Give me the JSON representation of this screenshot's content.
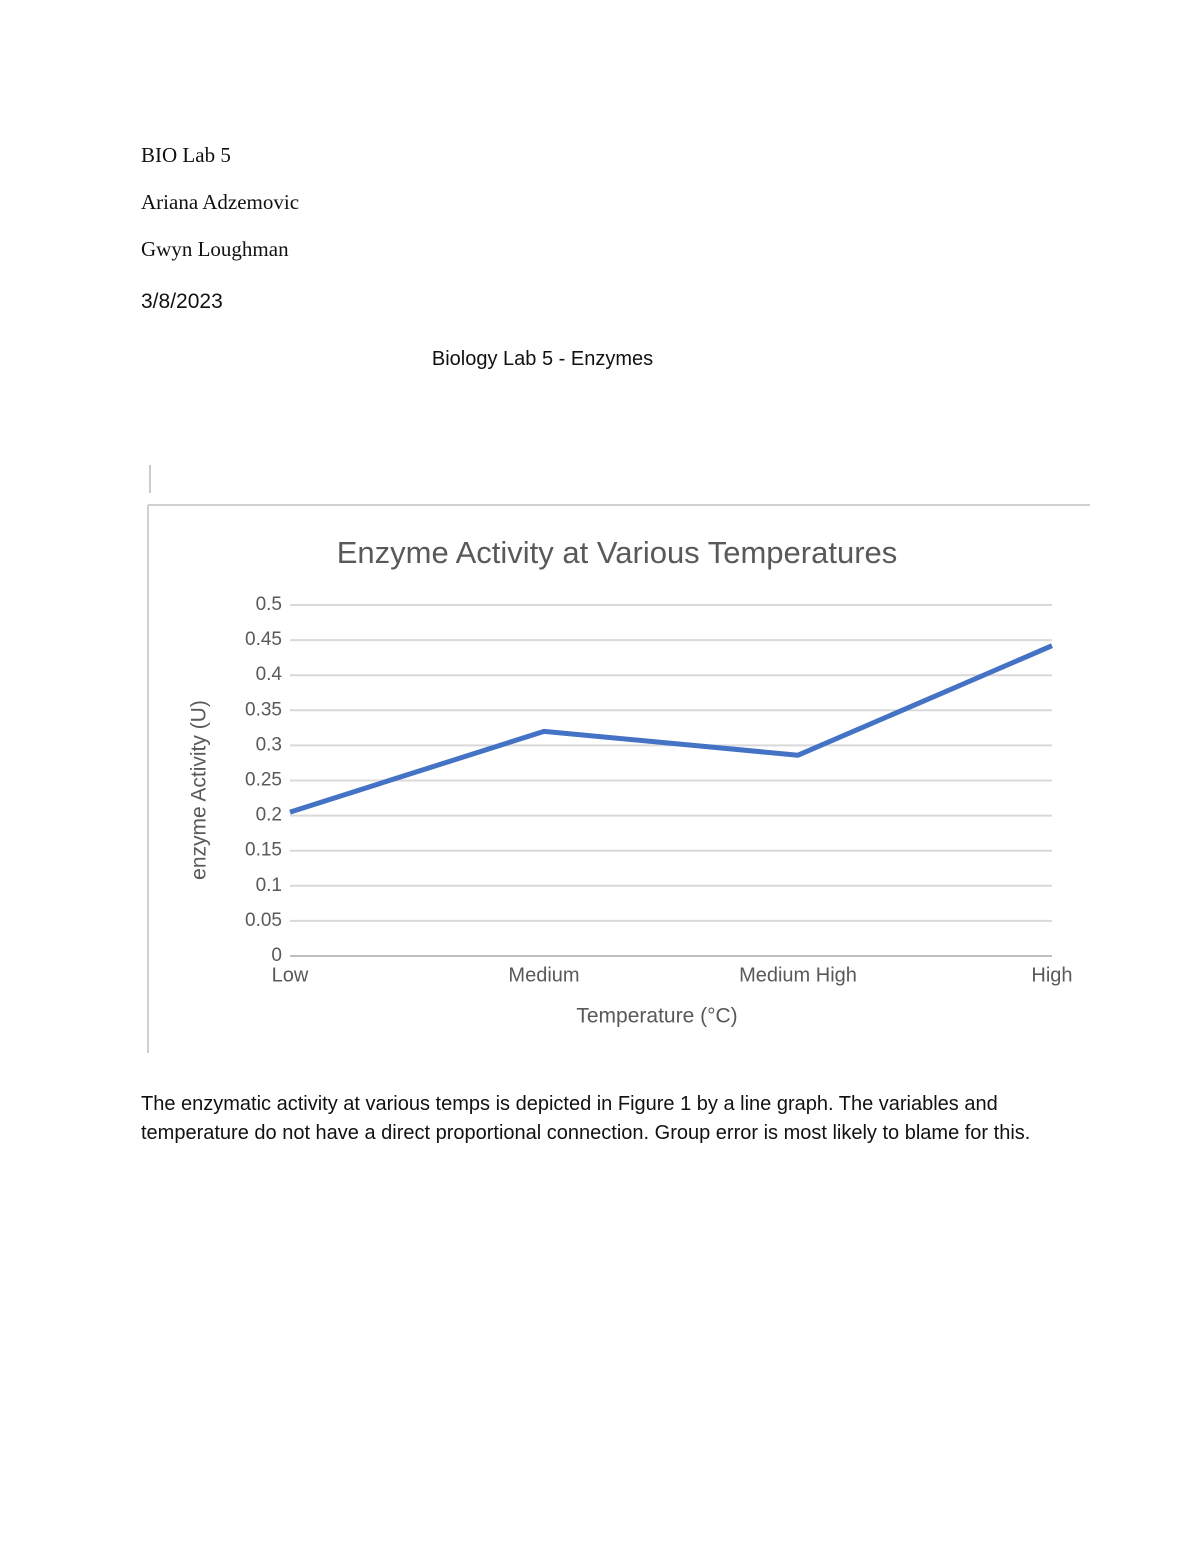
{
  "header": {
    "lines": [
      "BIO Lab 5",
      "Ariana Adzemovic",
      "Gwyn Loughman",
      "3/8/2023"
    ],
    "title": "Biology Lab 5 - Enzymes"
  },
  "chart_data": {
    "type": "line",
    "title": "Enzyme Activity at Various Temperatures",
    "x_label": "Temperature (°C)",
    "y_label": "enzyme Activity (U)",
    "categories": [
      "Low",
      "Medium",
      "Medium High",
      "High"
    ],
    "values": [
      0.205,
      0.32,
      0.286,
      0.442
    ],
    "color": "#4472c4",
    "ylim": [
      0,
      0.5
    ],
    "yticks": [
      0,
      0.05,
      0.1,
      0.15,
      0.2,
      0.25,
      0.3,
      0.35,
      0.4,
      0.45,
      0.5
    ],
    "grid": true
  },
  "body": {
    "paragraph": "The enzymatic activity at various temps is depicted in Figure 1 by a line graph. The variables and temperature do not have a direct proportional connection. Group error is most likely to blame for this."
  }
}
